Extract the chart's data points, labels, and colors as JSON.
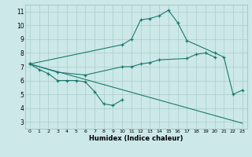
{
  "xlabel": "Humidex (Indice chaleur)",
  "bg_color": "#cce8e8",
  "grid_color": "#aacccc",
  "line_color": "#1a7a6e",
  "xlim": [
    -0.5,
    23.5
  ],
  "ylim": [
    2.5,
    11.5
  ],
  "xticks": [
    0,
    1,
    2,
    3,
    4,
    5,
    6,
    7,
    8,
    9,
    10,
    11,
    12,
    13,
    14,
    15,
    16,
    17,
    18,
    19,
    20,
    21,
    22,
    23
  ],
  "yticks": [
    3,
    4,
    5,
    6,
    7,
    8,
    9,
    10,
    11
  ],
  "series_marked": [
    {
      "x": [
        0,
        1,
        2,
        3,
        4,
        5,
        6,
        7,
        8,
        9,
        10
      ],
      "y": [
        7.2,
        6.8,
        6.5,
        6.0,
        6.0,
        6.0,
        5.9,
        5.2,
        4.3,
        4.2,
        4.6
      ]
    },
    {
      "x": [
        0,
        3,
        6,
        10,
        11,
        12,
        13,
        14,
        17,
        18,
        19,
        20
      ],
      "y": [
        7.2,
        6.6,
        6.4,
        7.0,
        7.0,
        7.2,
        7.3,
        7.5,
        7.6,
        7.9,
        8.0,
        7.7
      ]
    },
    {
      "x": [
        0,
        10,
        11,
        12,
        13,
        14,
        15,
        16,
        17,
        20,
        21,
        22,
        23
      ],
      "y": [
        7.2,
        8.6,
        9.0,
        10.4,
        10.5,
        10.7,
        11.1,
        10.2,
        8.9,
        8.0,
        7.7,
        5.0,
        5.3
      ]
    }
  ],
  "series_plain": [
    {
      "x": [
        0,
        23
      ],
      "y": [
        7.2,
        2.9
      ]
    }
  ]
}
